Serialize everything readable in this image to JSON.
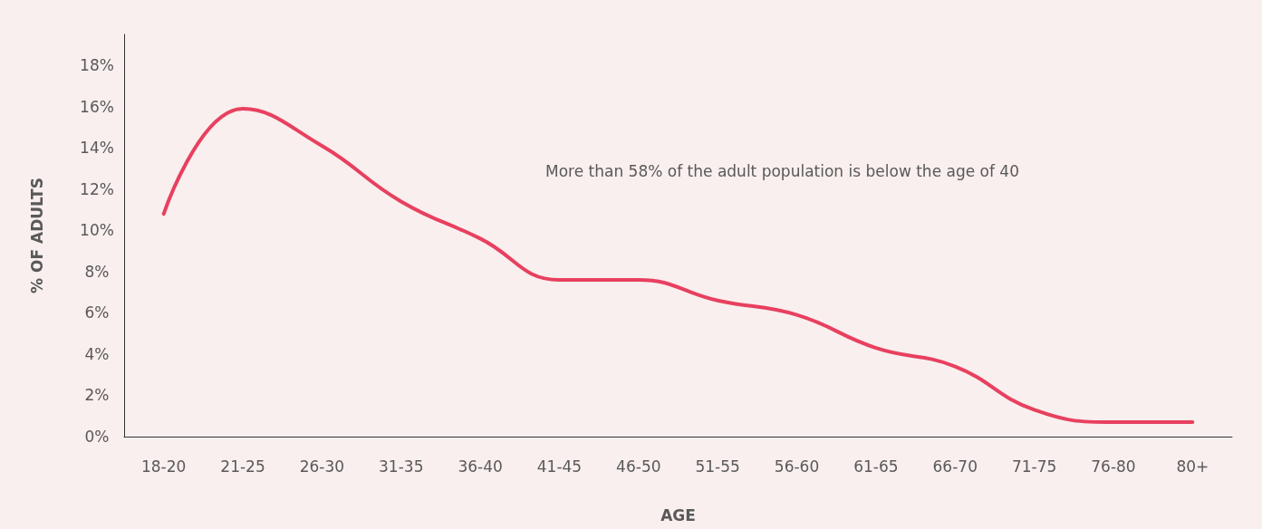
{
  "chart_data": {
    "type": "line",
    "xlabel": "AGE",
    "ylabel": "% OF ADULTS",
    "annotations": [
      "More than 58% of the adult population is below the age of 40"
    ],
    "categories": [
      "18-20",
      "21-25",
      "26-30",
      "31-35",
      "36-40",
      "41-45",
      "46-50",
      "51-55",
      "56-60",
      "61-65",
      "66-70",
      "71-75",
      "76-80",
      "80+"
    ],
    "series": [
      {
        "color": "#e8405f",
        "values": [
          10.8,
          15.9,
          14.1,
          11.4,
          9.6,
          7.6,
          7.6,
          6.6,
          5.9,
          4.3,
          3.4,
          1.3,
          0.7,
          0.7
        ]
      }
    ],
    "ylim": [
      0,
      19.5
    ],
    "yticks": [
      {
        "value": 0,
        "label": "0%"
      },
      {
        "value": 2,
        "label": "2%"
      },
      {
        "value": 4,
        "label": "4%"
      },
      {
        "value": 6,
        "label": "6%"
      },
      {
        "value": 8,
        "label": "8%"
      },
      {
        "value": 10,
        "label": "10%"
      },
      {
        "value": 12,
        "label": "12%"
      },
      {
        "value": 14,
        "label": "14%"
      },
      {
        "value": 16,
        "label": "16%"
      },
      {
        "value": 18,
        "label": "18%"
      }
    ],
    "grid": false,
    "marker": "none",
    "line_style": "solid"
  }
}
